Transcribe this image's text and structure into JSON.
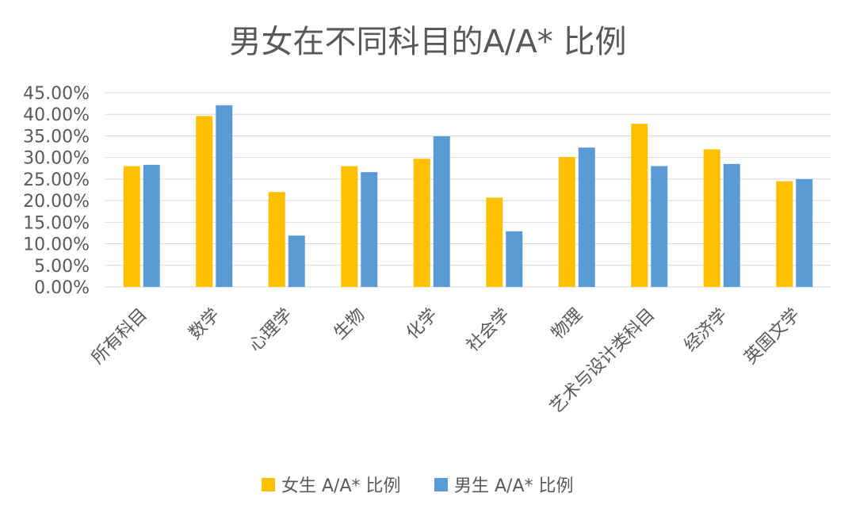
{
  "chart_data": {
    "type": "bar",
    "title": "男女在不同科目的A/A* 比例",
    "categories": [
      "所有科目",
      "数学",
      "心理学",
      "生物",
      "化学",
      "社会学",
      "物理",
      "艺术与设计类科目",
      "经济学",
      "英国文学"
    ],
    "series": [
      {
        "name": "女生 A/A* 比例",
        "color": "#ffc000",
        "values": [
          28.0,
          39.6,
          22.0,
          28.0,
          29.7,
          20.7,
          30.1,
          37.8,
          31.9,
          24.5
        ]
      },
      {
        "name": "男生 A/A* 比例",
        "color": "#5b9bd5",
        "values": [
          28.3,
          42.1,
          11.9,
          26.6,
          34.9,
          12.9,
          32.3,
          28.0,
          28.5,
          25.0
        ]
      }
    ],
    "ylim": [
      0,
      45
    ],
    "yticks": [
      "0.00%",
      "5.00%",
      "10.00%",
      "15.00%",
      "20.00%",
      "25.00%",
      "30.00%",
      "35.00%",
      "40.00%",
      "45.00%"
    ],
    "ytick_values": [
      0,
      5,
      10,
      15,
      20,
      25,
      30,
      35,
      40,
      45
    ],
    "xlabel": "",
    "ylabel": "",
    "grid": true,
    "legend_position": "bottom"
  }
}
